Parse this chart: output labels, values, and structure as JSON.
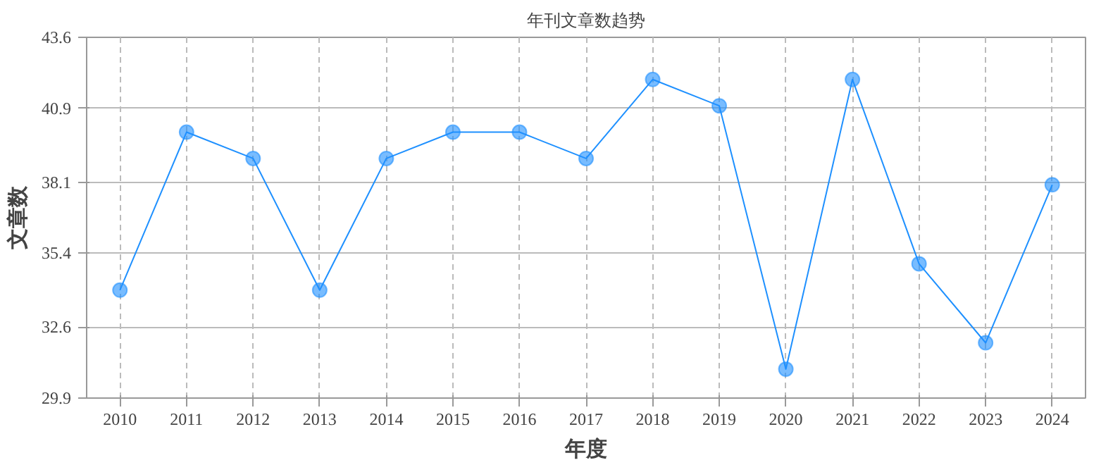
{
  "chart_data": {
    "type": "line",
    "title": "年刊文章数趋势",
    "xlabel": "年度",
    "ylabel": "文章数",
    "categories": [
      "2010",
      "2011",
      "2012",
      "2013",
      "2014",
      "2015",
      "2016",
      "2017",
      "2018",
      "2019",
      "2020",
      "2021",
      "2022",
      "2023",
      "2024"
    ],
    "series": [
      {
        "color": "#1e90ff",
        "values": [
          34,
          40,
          39,
          34,
          39,
          40,
          40,
          39,
          42,
          41,
          31,
          42,
          35,
          32,
          38
        ]
      }
    ],
    "ylim": [
      29.9,
      43.6
    ],
    "yticks": [
      29.9,
      32.6,
      35.4,
      38.1,
      40.9,
      43.6
    ],
    "grid": true,
    "marker": "circle",
    "line_style": "solid"
  }
}
